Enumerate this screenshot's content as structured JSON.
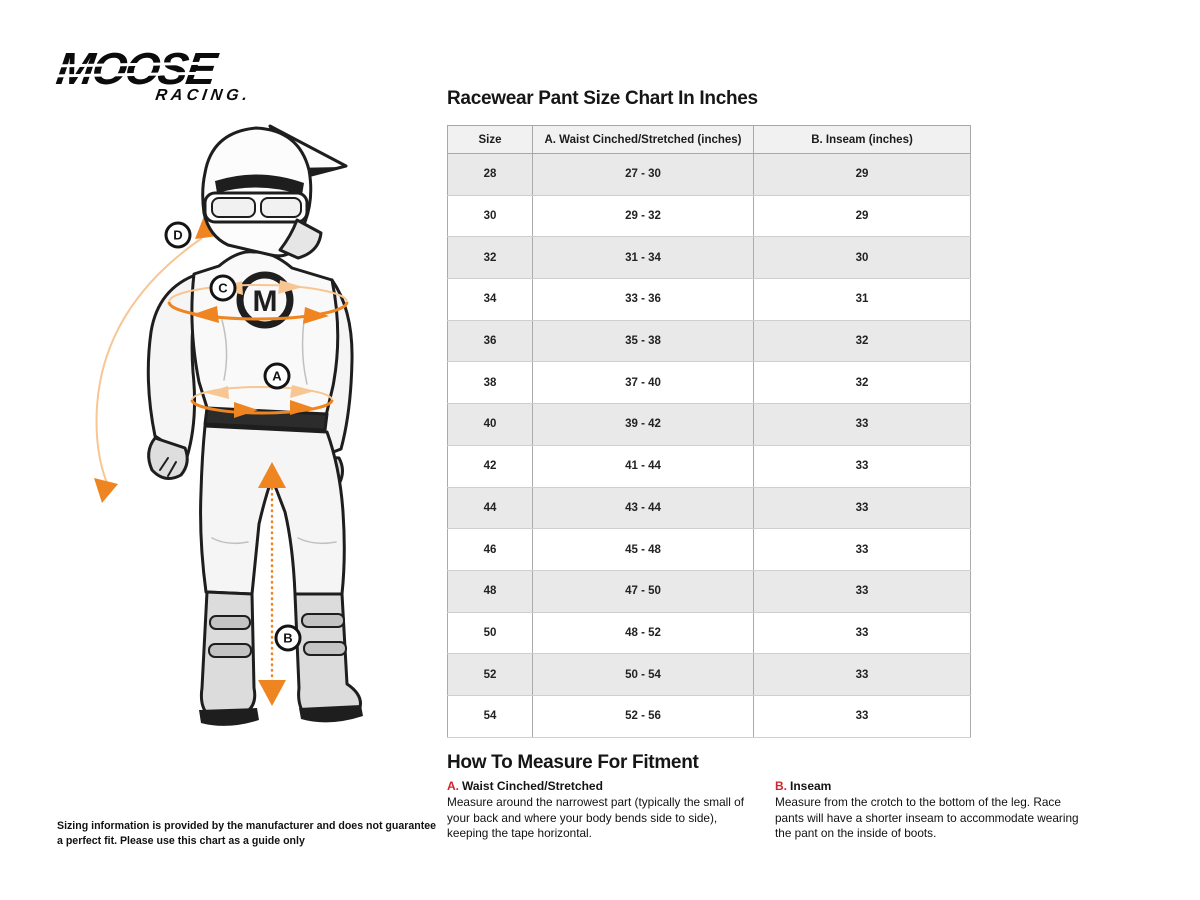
{
  "brand": {
    "name": "MOOSE",
    "sub": "RACING."
  },
  "size_chart": {
    "title": "Racewear Pant Size Chart In Inches",
    "columns": [
      "Size",
      "A. Waist Cinched/Stretched (inches)",
      "B. Inseam (inches)"
    ],
    "rows": [
      [
        "28",
        "27 - 30",
        "29"
      ],
      [
        "30",
        "29 - 32",
        "29"
      ],
      [
        "32",
        "31 - 34",
        "30"
      ],
      [
        "34",
        "33 - 36",
        "31"
      ],
      [
        "36",
        "35 - 38",
        "32"
      ],
      [
        "38",
        "37 - 40",
        "32"
      ],
      [
        "40",
        "39 - 42",
        "33"
      ],
      [
        "42",
        "41 - 44",
        "33"
      ],
      [
        "44",
        "43 - 44",
        "33"
      ],
      [
        "46",
        "45 - 48",
        "33"
      ],
      [
        "48",
        "47 - 50",
        "33"
      ],
      [
        "50",
        "48 - 52",
        "33"
      ],
      [
        "52",
        "50 - 54",
        "33"
      ],
      [
        "54",
        "52 - 56",
        "33"
      ]
    ]
  },
  "how_to_measure": {
    "title": "How To Measure For Fitment",
    "items": [
      {
        "letter": "A.",
        "name": "Waist Cinched/Stretched",
        "text": "Measure around the narrowest part (typically the small of your back and where your body bends side to side), keeping the tape horizontal."
      },
      {
        "letter": "B.",
        "name": "Inseam",
        "text": "Measure from the crotch to the bottom of the leg. Race pants will have a shorter inseam to accommodate wearing the pant on the inside of boots."
      }
    ]
  },
  "figure": {
    "marker_labels": [
      "A",
      "B",
      "C",
      "D"
    ],
    "jersey_logo_letter": "M"
  },
  "disclaimer": "Sizing information is provided by the manufacturer and does not guarantee a perfect fit. Please use this chart as a guide only",
  "colors": {
    "accent_orange": "#EF8521",
    "accent_orange_pale": "#F7C693",
    "accent_red": "#D2232A",
    "row_alt": "#E9E9E9",
    "header_bg": "#F1F1F1"
  }
}
